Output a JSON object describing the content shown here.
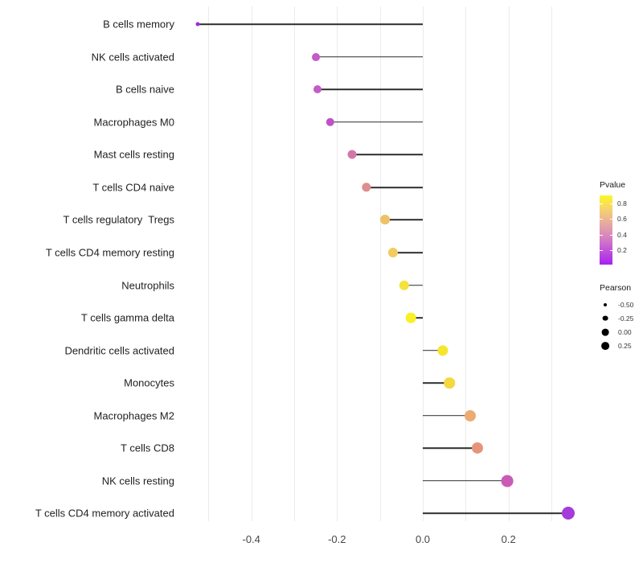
{
  "chart_data": {
    "type": "lollipop",
    "title": "",
    "xlabel": "",
    "ylabel": "",
    "x_tick_labels": [
      "-0.4",
      "-0.2",
      "0.0",
      "0.2"
    ],
    "x_tick_values": [
      -0.4,
      -0.2,
      0.0,
      0.2
    ],
    "xlim": [
      -0.57,
      0.382
    ],
    "gridlines_x": [
      -0.5,
      -0.4,
      -0.3,
      -0.2,
      -0.1,
      0.0,
      0.1,
      0.2,
      0.3
    ],
    "grid_color": "#ebebeb",
    "stem_color": "#2e2e2e",
    "points": [
      {
        "label": "B cells memory",
        "pearson": -0.526,
        "pvalue": 0.06,
        "color": "#9C2FD9"
      },
      {
        "label": "NK cells activated",
        "pearson": -0.25,
        "pvalue": 0.28,
        "color": "#C45AC8"
      },
      {
        "label": "B cells naive",
        "pearson": -0.246,
        "pvalue": 0.28,
        "color": "#C45CC6"
      },
      {
        "label": "Macrophages M0",
        "pearson": -0.216,
        "pvalue": 0.26,
        "color": "#BD53C7"
      },
      {
        "label": "Mast cells resting",
        "pearson": -0.166,
        "pvalue": 0.4,
        "color": "#D277AC"
      },
      {
        "label": "T cells CD4 naive",
        "pearson": -0.131,
        "pvalue": 0.5,
        "color": "#E08D90"
      },
      {
        "label": "T cells regulatory  Tregs",
        "pearson": -0.088,
        "pvalue": 0.66,
        "color": "#ECC167"
      },
      {
        "label": "T cells CD4 memory resting",
        "pearson": -0.069,
        "pvalue": 0.7,
        "color": "#F2CB61"
      },
      {
        "label": "Neutrophils",
        "pearson": -0.043,
        "pvalue": 0.8,
        "color": "#F5E23C"
      },
      {
        "label": "T cells gamma delta",
        "pearson": -0.028,
        "pvalue": 0.88,
        "color": "#F9F028"
      },
      {
        "label": "Dendritic cells activated",
        "pearson": 0.046,
        "pvalue": 0.83,
        "color": "#F6E52E"
      },
      {
        "label": "Monocytes",
        "pearson": 0.062,
        "pvalue": 0.76,
        "color": "#F4D83E"
      },
      {
        "label": "Macrophages M2",
        "pearson": 0.111,
        "pvalue": 0.6,
        "color": "#EDAB73"
      },
      {
        "label": "T cells CD8",
        "pearson": 0.127,
        "pvalue": 0.52,
        "color": "#E69479"
      },
      {
        "label": "NK cells resting",
        "pearson": 0.197,
        "pvalue": 0.3,
        "color": "#C95BB7"
      },
      {
        "label": "T cells CD4 memory activated",
        "pearson": 0.339,
        "pvalue": 0.1,
        "color": "#A43BDB"
      }
    ],
    "legend": {
      "color": {
        "title": "Pvalue",
        "tick_labels": [
          "0.8",
          "0.6",
          "0.4",
          "0.2"
        ],
        "tick_values": [
          0.8,
          0.6,
          0.4,
          0.2
        ],
        "range": [
          0.02,
          0.9
        ],
        "gradient_low": "#A621F1",
        "gradient_mid": "#DF97B0",
        "gradient_high": "#FCF723"
      },
      "size": {
        "title": "Pearson",
        "entry_labels": [
          "-0.50",
          "-0.25",
          "0.00",
          "0.25"
        ],
        "entry_values": [
          -0.5,
          -0.25,
          0.0,
          0.25
        ]
      }
    }
  }
}
